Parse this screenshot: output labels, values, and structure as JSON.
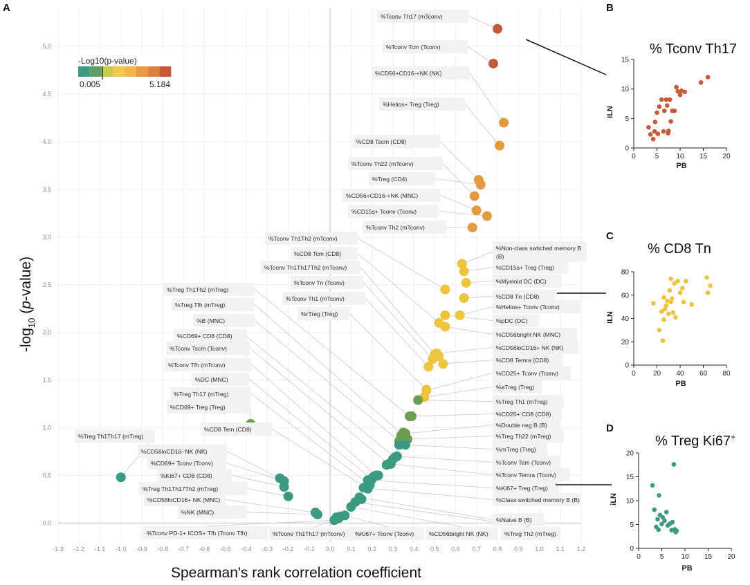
{
  "panel_labels": {
    "a": "A",
    "b": "B",
    "c": "C",
    "d": "D"
  },
  "legend": {
    "title": "-Log10(p-value)",
    "min_label": "0.005",
    "max_label": "5.184",
    "colors": [
      "#3d9a82",
      "#5d9e68",
      "#c9cc46",
      "#f0c84a",
      "#f0b840",
      "#e99a3e",
      "#de7f3e",
      "#c8573a"
    ]
  },
  "colors": {
    "green": "#3d9a82",
    "olive": "#6a9e50",
    "yellow": "#ecc43e",
    "orange": "#e49a3e",
    "red": "#c55a3a",
    "label_box": "#f2f2f2"
  },
  "chart_data": [
    {
      "type": "scatter",
      "panel": "A",
      "xlabel": "Spearman's rank correlation coefficient",
      "ylabel": "-log10 (p-value)",
      "ylabel_parts": {
        "prefix": "-log",
        "sub": "10",
        "open": " (",
        "italic": "p",
        "rest": "-value)"
      },
      "xlim": [
        -1.3,
        1.2
      ],
      "ylim": [
        -0.2,
        5.4
      ],
      "xticks": [
        "-1.3",
        "-1.2",
        "-1.1",
        "-1.0",
        "-0.9",
        "-0.8",
        "-0.7",
        "-0.6",
        "-0.5",
        "-0.4",
        "-0.3",
        "-0.2",
        "-0.1",
        "0.0",
        "0.1",
        "0.2",
        "0.3",
        "0.4",
        "0.5",
        "0.6",
        "0.7",
        "0.8",
        "0.9",
        "1.0",
        "1.1",
        "1.2"
      ],
      "yticks": [
        "0.0",
        "0.5",
        "1.0",
        "1.5",
        "2.0",
        "2.5",
        "3.0",
        "3.5",
        "4.0",
        "4.5",
        "5.0"
      ],
      "grid": true,
      "labels": [
        {
          "text": "%Tconv Th17 (mTconv)",
          "x": 0.8,
          "y": 5.184,
          "side": "top"
        },
        {
          "text": "%Tconv Tcm (Tconv)",
          "x": 0.78,
          "y": 4.82,
          "side": "top"
        },
        {
          "text": "%CD56+CD16-+NK (NK)",
          "x": 0.83,
          "y": 4.2,
          "side": "top"
        },
        {
          "text": "%Helios+ Treg (Treg)",
          "x": 0.81,
          "y": 3.96,
          "side": "top"
        },
        {
          "text": "%CD8 Tscm (CD8)",
          "x": 0.71,
          "y": 3.6,
          "side": "top"
        },
        {
          "text": "%Tconv Th22 (mTconv)",
          "x": 0.69,
          "y": 3.43,
          "side": "top"
        },
        {
          "text": "%Treg (CD4)",
          "x": 0.72,
          "y": 3.55,
          "side": "top"
        },
        {
          "text": "%CD56+CD16-+NK (MNC)",
          "x": 0.7,
          "y": 3.28,
          "side": "top"
        },
        {
          "text": "%CD15s+ Tconv (Tconv)",
          "x": 0.75,
          "y": 3.22,
          "side": "top"
        },
        {
          "text": "%Tconv Th2 (mTconv)",
          "x": 0.68,
          "y": 3.1,
          "side": "top"
        },
        {
          "text": "%Tconv Th1Th2 (mTconv)",
          "x": 0.55,
          "y": 2.45,
          "side": "left"
        },
        {
          "text": "%CD8 Tcm (CD8)",
          "x": 0.52,
          "y": 2.1,
          "side": "left"
        },
        {
          "text": "%Tconv Th1Th17Th2 (mTconv)",
          "x": 0.5,
          "y": 1.77,
          "side": "left"
        },
        {
          "text": "%Tconv Tn (Tconv)",
          "x": 0.49,
          "y": 1.72,
          "side": "left"
        },
        {
          "text": "%Tconv Th1 (mTconv)",
          "x": 0.47,
          "y": 1.64,
          "side": "left"
        },
        {
          "text": "%rTreg (Treg)",
          "x": 0.46,
          "y": 1.4,
          "side": "left"
        },
        {
          "text": "%Treg Th1Th2 (mTreg)",
          "x": 0.38,
          "y": 1.12,
          "side": "left"
        },
        {
          "text": "%Treg Tfh (mTreg)",
          "x": 0.35,
          "y": 0.92,
          "side": "left"
        },
        {
          "text": "%B (MNC)",
          "x": 0.33,
          "y": 0.86,
          "side": "left"
        },
        {
          "text": "%CD69+ CD8 (CD8)",
          "x": 0.31,
          "y": 0.69,
          "side": "left"
        },
        {
          "text": "%Tconv Tscm (Tconv)",
          "x": 0.28,
          "y": 0.62,
          "side": "left"
        },
        {
          "text": "%Tconv Tfh (mTconv)",
          "x": 0.22,
          "y": 0.5,
          "side": "left"
        },
        {
          "text": "%DC (MNC)",
          "x": 0.2,
          "y": 0.46,
          "side": "left"
        },
        {
          "text": "%Treg Th17 (mTreg)",
          "x": 0.19,
          "y": 0.4,
          "side": "left"
        },
        {
          "text": "%CD69+ Treg (Treg)",
          "x": -0.38,
          "y": 1.04,
          "side": "left"
        },
        {
          "text": "%CD8 Tem (CD8)",
          "x": 0.18,
          "y": 0.36,
          "side": "left"
        },
        {
          "text": "%Treg Th1Th17 (mTreg)",
          "x": -1.0,
          "y": 0.48,
          "side": "left"
        },
        {
          "text": "%CD56loCD16- NK (NK)",
          "x": -0.24,
          "y": 0.47,
          "side": "left"
        },
        {
          "text": "%CD69+ Tconv (Tconv)",
          "x": -0.22,
          "y": 0.44,
          "side": "left"
        },
        {
          "text": "%Ki67+ CD8 (CD8)",
          "x": -0.22,
          "y": 0.38,
          "side": "left"
        },
        {
          "text": "%Treg Th1Th17Th2 (mTreg)",
          "x": -0.2,
          "y": 0.28,
          "side": "left"
        },
        {
          "text": "%CD56loCD16+ NK (MNC)",
          "x": -0.07,
          "y": 0.11,
          "side": "left"
        },
        {
          "text": "%NK (MNC)",
          "x": -0.06,
          "y": 0.09,
          "side": "left"
        },
        {
          "text": "%Non-class swtiched memory B (B)",
          "x": 0.63,
          "y": 2.72,
          "side": "right"
        },
        {
          "text": "%CD15s+ Treg (Treg)",
          "x": 0.64,
          "y": 2.64,
          "side": "right"
        },
        {
          "text": "%Myeloid DC (DC)",
          "x": 0.65,
          "y": 2.52,
          "side": "right"
        },
        {
          "text": "%CD8 Tn (CD8)",
          "x": 0.64,
          "y": 2.36,
          "side": "right"
        },
        {
          "text": "%Helios+ Tconv (Tconv)",
          "x": 0.62,
          "y": 2.18,
          "side": "right"
        },
        {
          "text": "%pDC (DC)",
          "x": 0.55,
          "y": 2.18,
          "side": "right"
        },
        {
          "text": "%CD56bright NK (MNC)",
          "x": 0.55,
          "y": 2.06,
          "side": "right"
        },
        {
          "text": "%CD56loCD16+ NK (NK)",
          "x": 0.51,
          "y": 1.78,
          "side": "right"
        },
        {
          "text": "%CD8 Temra (CD8)",
          "x": 0.54,
          "y": 1.67,
          "side": "right"
        },
        {
          "text": "%CD25+ Tconv (Tconv)",
          "x": 0.46,
          "y": 1.39,
          "side": "right"
        },
        {
          "text": "%aTreg (Treg)",
          "x": 0.45,
          "y": 1.32,
          "side": "right"
        },
        {
          "text": "%Treg Th1 (mTreg)",
          "x": 0.42,
          "y": 1.29,
          "side": "right"
        },
        {
          "text": "%CD25+ CD8 (CD8)",
          "x": 0.39,
          "y": 1.12,
          "side": "right"
        },
        {
          "text": "%Double neg B (B)",
          "x": 0.36,
          "y": 0.94,
          "side": "right"
        },
        {
          "text": "%Treg Th22 (mTreg)",
          "x": 0.37,
          "y": 0.88,
          "side": "right"
        },
        {
          "text": "%mTreg (Treg)",
          "x": 0.36,
          "y": 0.82,
          "side": "right"
        },
        {
          "text": "%Tconv Tem (Tconv)",
          "x": 0.32,
          "y": 0.7,
          "side": "right"
        },
        {
          "text": "%Tconv Temra (Tconv)",
          "x": 0.29,
          "y": 0.62,
          "side": "right"
        },
        {
          "text": "%Ki67+ Treg (Treg)",
          "x": 0.18,
          "y": 0.45,
          "side": "right"
        },
        {
          "text": "%Class-switched memory B (B)",
          "x": 0.16,
          "y": 0.37,
          "side": "right"
        },
        {
          "text": "%Naive B (B)",
          "x": 0.14,
          "y": 0.27,
          "side": "right"
        },
        {
          "text": "%Tconv PD-1+ ICOS+ Tfh (Tconv Tfh)",
          "x": 0.02,
          "y": 0.03,
          "side": "bottom"
        },
        {
          "text": "%Tconv Th1Th17 (mTconv)",
          "x": 0.04,
          "y": 0.05,
          "side": "bottom"
        },
        {
          "text": "%Ki67+ Tconv (Tconv)",
          "x": 0.07,
          "y": 0.08,
          "side": "bottom"
        },
        {
          "text": "%CD56bright NK (NK)",
          "x": 0.1,
          "y": 0.17,
          "side": "bottom"
        },
        {
          "text": "%Treg Th2 (mTreg)",
          "x": 0.12,
          "y": 0.22,
          "side": "bottom"
        }
      ],
      "extra_points": [
        {
          "x": 0.27,
          "y": 0.61
        },
        {
          "x": 0.3,
          "y": 0.67
        },
        {
          "x": 0.33,
          "y": 0.82
        },
        {
          "x": 0.35,
          "y": 0.95
        },
        {
          "x": 0.34,
          "y": 0.92
        },
        {
          "x": 0.21,
          "y": 0.49
        },
        {
          "x": 0.2,
          "y": 0.47
        },
        {
          "x": 0.19,
          "y": 0.42
        },
        {
          "x": 0.23,
          "y": 0.5
        },
        {
          "x": -0.07,
          "y": 0.11
        },
        {
          "x": 0.03,
          "y": 0.06
        },
        {
          "x": 0.05,
          "y": 0.07
        },
        {
          "x": 0.15,
          "y": 0.25
        },
        {
          "x": 0.52,
          "y": 1.75
        }
      ]
    },
    {
      "type": "scatter",
      "panel": "B",
      "title": "% Tconv Th17",
      "xlabel": "PB",
      "ylabel": "iLN",
      "xlim": [
        0,
        20
      ],
      "ylim": [
        0,
        15
      ],
      "xticks": [
        "0",
        "5",
        "10",
        "15",
        "20"
      ],
      "yticks": [
        "0",
        "5",
        "10",
        "15"
      ],
      "x": [
        3.2,
        3.6,
        4.2,
        4.5,
        4.6,
        5.0,
        5.2,
        5.5,
        6.0,
        6.4,
        6.6,
        7.0,
        7.2,
        7.4,
        7.5,
        7.8,
        8.0,
        8.3,
        8.8,
        9.2,
        9.5,
        10.0,
        10.3,
        11.0,
        14.5,
        16.0
      ],
      "y": [
        3.5,
        2.3,
        1.5,
        2.8,
        4.4,
        6.0,
        2.4,
        7.0,
        8.2,
        2.8,
        6.3,
        8.2,
        7.2,
        2.5,
        2.9,
        8.2,
        4.5,
        6.3,
        6.3,
        10.3,
        9.6,
        9.0,
        9.7,
        9.5,
        11.1,
        12.0
      ]
    },
    {
      "type": "scatter",
      "panel": "C",
      "title": "% CD8 Tn",
      "xlabel": "PB",
      "ylabel": "iLN",
      "xlim": [
        0,
        80
      ],
      "ylim": [
        0,
        80
      ],
      "xticks": [
        "0",
        "20",
        "40",
        "60",
        "80"
      ],
      "yticks": [
        "0",
        "20",
        "40",
        "60",
        "80"
      ],
      "x": [
        17,
        22,
        24,
        25,
        26,
        26,
        27,
        28,
        29,
        30,
        31,
        32,
        32,
        33,
        34,
        35,
        36,
        38,
        40,
        42,
        43,
        45,
        50,
        63,
        64,
        66
      ],
      "y": [
        53,
        30,
        46,
        21,
        39,
        58,
        48,
        51,
        55,
        44,
        64,
        74,
        54,
        57,
        45,
        70,
        41,
        72,
        62,
        66,
        54,
        72,
        52,
        75,
        62,
        68
      ]
    },
    {
      "type": "scatter",
      "panel": "D",
      "title": "% Treg Ki67+",
      "title_parts": {
        "main": "% Treg Ki67",
        "sup": "+"
      },
      "xlabel": "PB",
      "ylabel": "iLN",
      "xlim": [
        0,
        20
      ],
      "ylim": [
        0,
        20
      ],
      "xticks": [
        "0",
        "5",
        "10",
        "15",
        "20"
      ],
      "yticks": [
        "0",
        "5",
        "10",
        "15",
        "20"
      ],
      "x": [
        3.0,
        3.4,
        3.8,
        4.1,
        4.3,
        4.4,
        4.6,
        5.0,
        5.2,
        5.6,
        6.0,
        6.3,
        6.8,
        7.1,
        7.3,
        7.6,
        7.8,
        8.0,
        8.2
      ],
      "y": [
        13.2,
        8.1,
        4.5,
        6.1,
        3.9,
        11.1,
        7.0,
        5.1,
        6.5,
        5.8,
        7.6,
        4.8,
        5.2,
        3.8,
        5.5,
        17.6,
        4.0,
        3.4,
        3.7
      ]
    }
  ]
}
